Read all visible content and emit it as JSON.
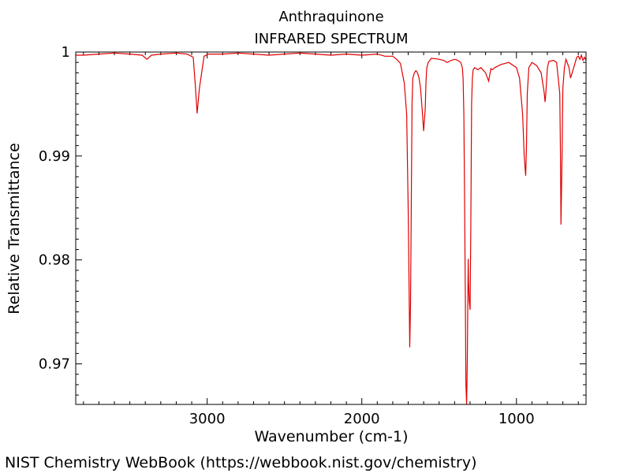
{
  "chart_data": {
    "type": "line",
    "title": "Anthraquinone",
    "subtitle": "INFRARED SPECTRUM",
    "xlabel": "Wavenumber (cm-1)",
    "ylabel": "Relative Transmittance",
    "xlim": [
      3850,
      550
    ],
    "ylim": [
      0.9661,
      1.0
    ],
    "x_reversed": true,
    "xticks": [
      3000,
      2000,
      1000
    ],
    "xtick_labels": [
      "3000",
      "2000",
      "1000"
    ],
    "yticks": [
      0.97,
      0.98,
      0.99,
      1.0
    ],
    "ytick_labels": [
      "0.97",
      "0.98",
      "0.99",
      "1"
    ],
    "grid": false,
    "line_color": "#e00000",
    "series": [
      {
        "x": [
          3850,
          3800,
          3700,
          3600,
          3500,
          3420,
          3390,
          3360,
          3300,
          3200,
          3130,
          3090,
          3075,
          3065,
          3050,
          3020,
          2990,
          2900,
          2800,
          2700,
          2600,
          2500,
          2400,
          2300,
          2200,
          2100,
          2000,
          1900,
          1850,
          1800,
          1775,
          1750,
          1725,
          1710,
          1700,
          1690,
          1685,
          1680,
          1675,
          1670,
          1660,
          1650,
          1640,
          1630,
          1620,
          1610,
          1600,
          1590,
          1585,
          1580,
          1570,
          1560,
          1550,
          1500,
          1470,
          1450,
          1420,
          1400,
          1380,
          1360,
          1350,
          1345,
          1340,
          1335,
          1330,
          1327,
          1322,
          1318,
          1312,
          1310,
          1305,
          1300,
          1295,
          1290,
          1285,
          1280,
          1270,
          1250,
          1230,
          1200,
          1180,
          1170,
          1165,
          1155,
          1140,
          1100,
          1050,
          1000,
          980,
          960,
          950,
          940,
          935,
          930,
          920,
          900,
          870,
          840,
          820,
          815,
          810,
          800,
          790,
          760,
          740,
          720,
          715,
          712,
          705,
          700,
          690,
          680,
          670,
          660,
          650,
          640,
          620,
          610,
          600,
          590,
          580,
          570,
          560,
          550
        ],
        "y": [
          0.9997,
          0.9997,
          0.9998,
          0.9999,
          0.9998,
          0.9997,
          0.9993,
          0.9997,
          0.9998,
          0.9999,
          0.9998,
          0.9995,
          0.9965,
          0.9941,
          0.9965,
          0.9996,
          0.9998,
          0.9998,
          0.9999,
          0.9998,
          0.9997,
          0.9998,
          0.9999,
          0.9998,
          0.9997,
          0.9998,
          0.9997,
          0.9998,
          0.9996,
          0.9996,
          0.9993,
          0.9989,
          0.997,
          0.994,
          0.985,
          0.9716,
          0.976,
          0.986,
          0.995,
          0.9975,
          0.998,
          0.9982,
          0.998,
          0.9975,
          0.9965,
          0.9945,
          0.9924,
          0.9945,
          0.9972,
          0.9985,
          0.999,
          0.9992,
          0.9994,
          0.9993,
          0.9992,
          0.999,
          0.9992,
          0.9993,
          0.9992,
          0.999,
          0.9985,
          0.9975,
          0.994,
          0.985,
          0.975,
          0.968,
          0.9661,
          0.97,
          0.9801,
          0.978,
          0.976,
          0.9752,
          0.983,
          0.995,
          0.9975,
          0.9983,
          0.9985,
          0.9983,
          0.9985,
          0.998,
          0.9972,
          0.998,
          0.9984,
          0.9983,
          0.9985,
          0.9988,
          0.999,
          0.9985,
          0.9975,
          0.994,
          0.99,
          0.9881,
          0.991,
          0.996,
          0.9985,
          0.999,
          0.9987,
          0.998,
          0.996,
          0.9952,
          0.996,
          0.9985,
          0.9991,
          0.9992,
          0.999,
          0.996,
          0.99,
          0.9834,
          0.99,
          0.9965,
          0.9985,
          0.9993,
          0.9989,
          0.9985,
          0.9975,
          0.998,
          0.999,
          0.9995,
          0.9996,
          0.9993,
          0.9997,
          0.9992,
          0.9995,
          0.9992
        ]
      }
    ]
  },
  "footer": {
    "credit": "NIST Chemistry WebBook (https://webbook.nist.gov/chemistry)"
  }
}
